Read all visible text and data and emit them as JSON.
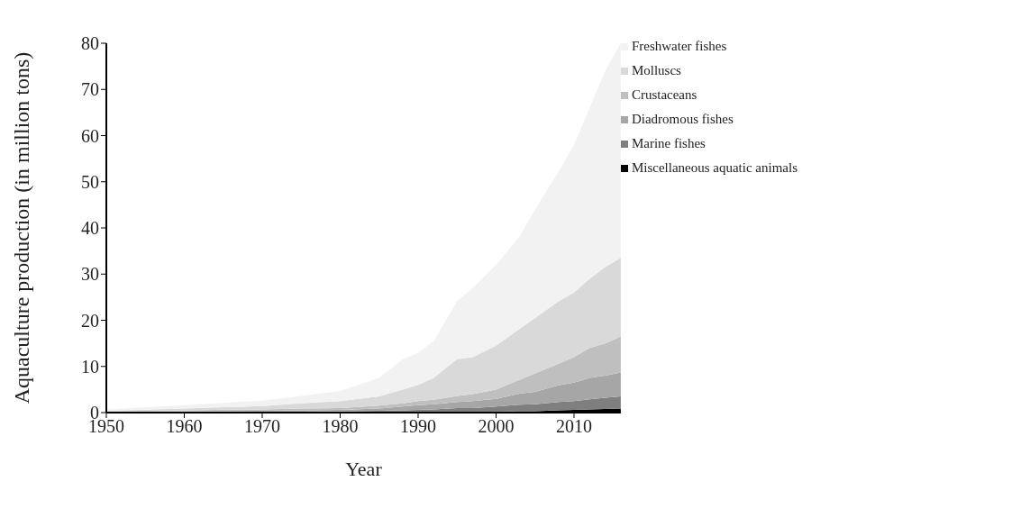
{
  "chart_data": {
    "type": "area",
    "stacked": true,
    "xlabel": "Year",
    "ylabel": "Aquaculture production (in million tons)",
    "x": [
      1950,
      1960,
      1970,
      1975,
      1980,
      1985,
      1988,
      1990,
      1992,
      1995,
      1997,
      2000,
      2003,
      2005,
      2008,
      2010,
      2012,
      2014,
      2016
    ],
    "series": [
      {
        "name": "Miscellaneous aquatic animals",
        "color": "#000000",
        "values": [
          0,
          0,
          0,
          0,
          0,
          0.1,
          0.1,
          0.1,
          0.1,
          0.2,
          0.2,
          0.2,
          0.3,
          0.3,
          0.5,
          0.6,
          0.7,
          0.8,
          0.9
        ]
      },
      {
        "name": "Marine fishes",
        "color": "#7f7f7f",
        "values": [
          0.1,
          0.1,
          0.1,
          0.2,
          0.3,
          0.3,
          0.4,
          0.5,
          0.6,
          0.8,
          0.8,
          1.1,
          1.4,
          1.5,
          1.8,
          1.9,
          2.2,
          2.4,
          2.6
        ]
      },
      {
        "name": "Diadromous fishes",
        "color": "#a6a6a6",
        "values": [
          0.1,
          0.2,
          0.3,
          0.3,
          0.3,
          0.5,
          0.8,
          1.0,
          1.1,
          1.3,
          1.5,
          1.7,
          2.4,
          2.7,
          3.6,
          4.0,
          4.6,
          4.8,
          5.2
        ]
      },
      {
        "name": "Crustaceans",
        "color": "#bfbfbf",
        "values": [
          0.1,
          0.2,
          0.3,
          0.4,
          0.4,
          0.6,
          0.7,
          0.9,
          1.0,
          1.3,
          1.5,
          2.0,
          3.0,
          4.0,
          4.7,
          5.5,
          6.5,
          7.0,
          7.8
        ]
      },
      {
        "name": "Molluscs",
        "color": "#d9d9d9",
        "values": [
          0.1,
          0.4,
          0.7,
          1.1,
          1.5,
          2.0,
          3.0,
          3.5,
          4.7,
          8.0,
          8.0,
          9.5,
          11,
          12,
          13.5,
          14,
          15,
          16.5,
          17
        ]
      },
      {
        "name": "Freshwater fishes",
        "color": "#f2f2f2",
        "values": [
          0.3,
          0.7,
          1.2,
          1.6,
          2.2,
          4.0,
          6.5,
          7.0,
          8.0,
          12.5,
          15,
          17.5,
          20,
          23.5,
          28,
          32,
          37,
          42.5,
          46.5
        ]
      }
    ],
    "xlim": [
      1950,
      2016
    ],
    "xticks": [
      1950,
      1960,
      1970,
      1980,
      1990,
      2000,
      2010
    ],
    "ylim": [
      0,
      80
    ],
    "yticks": [
      0,
      10,
      20,
      30,
      40,
      50,
      60,
      70,
      80
    ],
    "grid": false,
    "legend": "top right"
  }
}
